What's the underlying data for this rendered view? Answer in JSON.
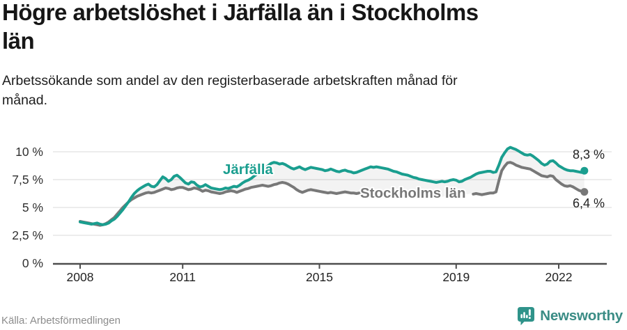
{
  "header": {
    "title_line1": "Högre arbetslöshet i Järfälla än i Stockholms",
    "title_line2": "län",
    "subtitle_line1": "Arbetssökande som andel av den registerbaserade arbetskraften månad för",
    "subtitle_line2": "månad."
  },
  "footer": {
    "source": "Källa: Arbetsförmedlingen",
    "brand": "Newsworthy",
    "brand_icon": "speech-bubble-bar-chart-icon"
  },
  "colors": {
    "jarfalla": "#1a9e8f",
    "stockholm": "#787878",
    "grid": "#e0e0e0",
    "axis": "#4d4d4d",
    "fill_between": "#787878",
    "brand_teal": "#2f938a",
    "value_label": "#222222"
  },
  "chart_data": {
    "type": "line",
    "title": "Högre arbetslöshet i Järfälla än i Stockholms län",
    "subtitle": "Arbetssökande som andel av den registerbaserade arbetskraften månad för månad.",
    "unit": "%",
    "frequency": "monthly",
    "x_start": "2008-01",
    "x_end": "2022-10",
    "ylim": [
      0,
      10.8
    ],
    "grid": true,
    "y_ticks": [
      {
        "value": 0,
        "label": "0 %"
      },
      {
        "value": 2.5,
        "label": "2,5 %"
      },
      {
        "value": 5,
        "label": "5 %"
      },
      {
        "value": 7.5,
        "label": "7,5 %"
      },
      {
        "value": 10,
        "label": "10 %"
      }
    ],
    "x_ticks": [
      {
        "year": 2008,
        "label": "2008"
      },
      {
        "year": 2011,
        "label": "2011"
      },
      {
        "year": 2015,
        "label": "2015"
      },
      {
        "year": 2019,
        "label": "2019"
      },
      {
        "year": 2022,
        "label": "2022"
      }
    ],
    "series": [
      {
        "name": "Järfälla",
        "color": "#1a9e8f",
        "end_label": "8,3 %",
        "end_value": 8.3,
        "values": [
          3.7,
          3.65,
          3.6,
          3.55,
          3.5,
          3.55,
          3.6,
          3.5,
          3.45,
          3.5,
          3.6,
          3.8,
          3.95,
          4.2,
          4.5,
          4.8,
          5.15,
          5.5,
          5.9,
          6.25,
          6.5,
          6.7,
          6.85,
          7.0,
          7.1,
          6.9,
          6.85,
          7.05,
          7.4,
          7.75,
          7.6,
          7.35,
          7.5,
          7.8,
          7.9,
          7.7,
          7.45,
          7.2,
          7.1,
          7.3,
          7.25,
          7.0,
          6.85,
          6.9,
          7.05,
          6.9,
          6.75,
          6.7,
          6.65,
          6.6,
          6.65,
          6.75,
          6.7,
          6.8,
          6.9,
          6.85,
          7.0,
          7.2,
          7.35,
          7.45,
          7.6,
          7.8,
          8.0,
          8.2,
          8.4,
          8.55,
          8.75,
          8.95,
          9.05,
          9.0,
          8.9,
          8.95,
          8.85,
          8.7,
          8.55,
          8.45,
          8.55,
          8.65,
          8.5,
          8.4,
          8.5,
          8.6,
          8.55,
          8.5,
          8.45,
          8.4,
          8.3,
          8.35,
          8.45,
          8.35,
          8.25,
          8.2,
          8.3,
          8.35,
          8.25,
          8.2,
          8.1,
          8.15,
          8.25,
          8.35,
          8.45,
          8.55,
          8.65,
          8.6,
          8.65,
          8.6,
          8.55,
          8.5,
          8.45,
          8.35,
          8.25,
          8.2,
          8.1,
          8.0,
          7.95,
          7.9,
          7.8,
          7.7,
          7.65,
          7.55,
          7.5,
          7.45,
          7.4,
          7.35,
          7.3,
          7.25,
          7.3,
          7.35,
          7.3,
          7.35,
          7.45,
          7.5,
          7.45,
          7.3,
          7.35,
          7.5,
          7.6,
          7.7,
          7.85,
          8.0,
          8.1,
          8.15,
          8.2,
          8.25,
          8.25,
          8.15,
          8.2,
          8.8,
          9.5,
          9.9,
          10.25,
          10.4,
          10.3,
          10.2,
          10.05,
          9.9,
          9.75,
          9.7,
          9.75,
          9.6,
          9.4,
          9.2,
          8.95,
          8.8,
          8.9,
          9.15,
          9.2,
          9.0,
          8.75,
          8.6,
          8.45,
          8.35,
          8.3,
          8.3,
          8.25,
          8.2,
          8.15,
          8.3
        ]
      },
      {
        "name": "Stockholms län",
        "color": "#787878",
        "end_label": "6,4 %",
        "end_value": 6.4,
        "values": [
          3.75,
          3.7,
          3.65,
          3.6,
          3.55,
          3.5,
          3.45,
          3.4,
          3.45,
          3.55,
          3.7,
          3.9,
          4.1,
          4.4,
          4.7,
          5.0,
          5.25,
          5.5,
          5.7,
          5.85,
          6.0,
          6.1,
          6.2,
          6.3,
          6.35,
          6.3,
          6.35,
          6.45,
          6.55,
          6.65,
          6.75,
          6.7,
          6.6,
          6.65,
          6.75,
          6.8,
          6.8,
          6.7,
          6.6,
          6.65,
          6.75,
          6.7,
          6.6,
          6.45,
          6.55,
          6.5,
          6.4,
          6.35,
          6.3,
          6.25,
          6.3,
          6.4,
          6.45,
          6.5,
          6.45,
          6.35,
          6.45,
          6.55,
          6.65,
          6.7,
          6.8,
          6.85,
          6.9,
          6.95,
          7.0,
          6.95,
          6.9,
          6.95,
          7.05,
          7.1,
          7.2,
          7.25,
          7.2,
          7.1,
          6.95,
          6.8,
          6.6,
          6.45,
          6.35,
          6.45,
          6.55,
          6.6,
          6.55,
          6.5,
          6.45,
          6.4,
          6.35,
          6.3,
          6.35,
          6.3,
          6.25,
          6.3,
          6.35,
          6.4,
          6.35,
          6.3,
          6.3,
          6.25,
          6.3,
          6.35,
          6.3,
          6.35,
          6.3,
          6.25,
          6.3,
          6.35,
          6.3,
          6.25,
          6.2,
          6.15,
          6.1,
          6.15,
          6.2,
          6.15,
          6.1,
          6.05,
          6.1,
          6.15,
          6.1,
          6.05,
          6.0,
          5.95,
          5.9,
          5.95,
          6.0,
          5.95,
          5.9,
          5.95,
          6.0,
          6.05,
          6.1,
          6.1,
          6.1,
          6.05,
          6.1,
          6.15,
          6.2,
          6.25,
          6.2,
          6.25,
          6.2,
          6.15,
          6.2,
          6.25,
          6.3,
          6.3,
          6.4,
          7.4,
          8.3,
          8.7,
          9.0,
          9.05,
          8.95,
          8.8,
          8.7,
          8.6,
          8.55,
          8.5,
          8.45,
          8.3,
          8.15,
          8.0,
          7.85,
          7.8,
          7.75,
          7.85,
          7.8,
          7.5,
          7.3,
          7.1,
          6.95,
          6.9,
          6.95,
          6.85,
          6.7,
          6.55,
          6.45,
          6.4
        ]
      }
    ],
    "legend_position": "inline-labels"
  }
}
